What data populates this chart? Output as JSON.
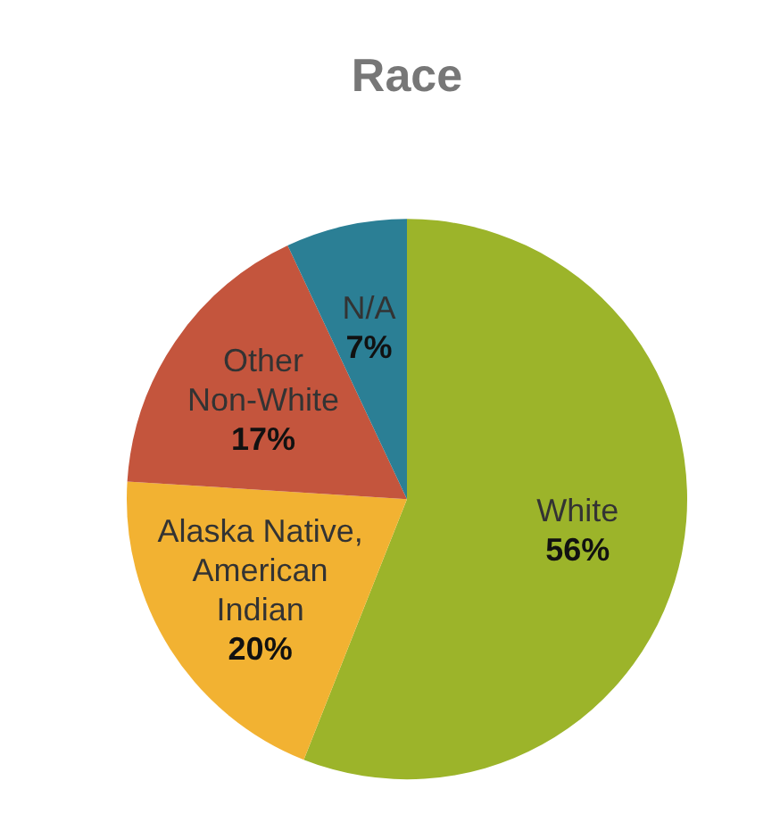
{
  "chart_data": {
    "type": "pie",
    "title": "Race",
    "categories": [
      "White",
      "Alaska Native, American Indian",
      "Other Non-White",
      "N/A"
    ],
    "values": [
      56,
      20,
      17,
      7
    ],
    "value_labels": [
      "56%",
      "20%",
      "17%",
      "7%"
    ],
    "colors": [
      "#9cb42a",
      "#f2b232",
      "#c4553d",
      "#2b7f95"
    ]
  }
}
